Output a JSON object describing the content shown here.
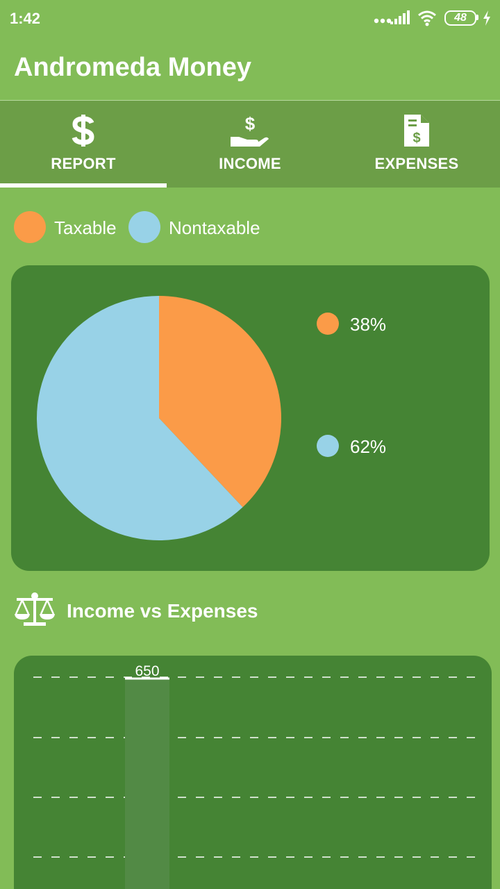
{
  "status_bar": {
    "time": "1:42",
    "battery": "48",
    "icons": [
      "dots-icon",
      "signal-icon",
      "wifi-icon",
      "battery-icon",
      "charging-icon"
    ]
  },
  "app": {
    "title": "Andromeda Money"
  },
  "tabs": [
    {
      "label": "REPORT",
      "icon": "dollar-icon",
      "selected": true
    },
    {
      "label": "INCOME",
      "icon": "hand-dollar-icon",
      "selected": false
    },
    {
      "label": "EXPENSES",
      "icon": "invoice-icon",
      "selected": false
    }
  ],
  "legend": [
    {
      "label": "Taxable",
      "color": "#fb9b48"
    },
    {
      "label": "Nontaxable",
      "color": "#98d2e7"
    }
  ],
  "pie": {
    "slices": [
      {
        "label": "38%",
        "color": "#fb9b48"
      },
      {
        "label": "62%",
        "color": "#98d2e7"
      }
    ]
  },
  "section": {
    "title": "Income vs Expenses",
    "icon": "balance-scale-icon"
  },
  "colors": {
    "background": "#82bc57",
    "tab_bar": "#6c9e47",
    "card": "#458434",
    "bar": "#528a45"
  },
  "chart_data": [
    {
      "type": "pie",
      "categories": [
        "Taxable",
        "Nontaxable"
      ],
      "values": [
        38,
        62
      ],
      "colors": [
        "#fb9b48",
        "#98d2e7"
      ],
      "legend": "top-left"
    },
    {
      "type": "bar",
      "categories": [
        ""
      ],
      "values": [
        650
      ],
      "data_labels": [
        "650"
      ],
      "grid": true
    }
  ]
}
